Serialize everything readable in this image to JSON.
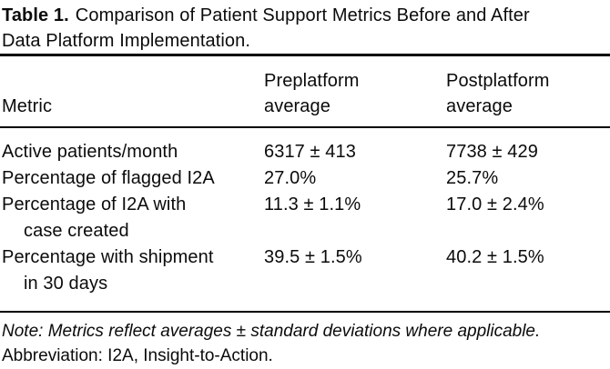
{
  "colors": {
    "background": "#ffffff",
    "text": "#0b0b0b",
    "rule": "#000000"
  },
  "caption": {
    "label": "Table 1.",
    "line1": "Comparison of Patient Support Metrics Before and After",
    "line2": "Data Platform Implementation."
  },
  "table": {
    "columns": {
      "metric": "Metric",
      "preplatform": "Preplatform average",
      "postplatform": "Postplatform average"
    },
    "rows": [
      {
        "metric_line1": "Active patients/month",
        "pre": "6317 ± 413",
        "post": "7738 ± 429"
      },
      {
        "metric_line1": "Percentage of flagged I2A",
        "pre": "27.0%",
        "post": "25.7%"
      },
      {
        "metric_line1": "Percentage of I2A with",
        "metric_line2": "case created",
        "pre": "11.3 ± 1.1%",
        "post": "17.0 ± 2.4%"
      },
      {
        "metric_line1": "Percentage with shipment",
        "metric_line2": "in 30 days",
        "pre": "39.5 ± 1.5%",
        "post": "40.2 ± 1.5%"
      }
    ]
  },
  "footnotes": {
    "note": "Note: Metrics reflect averages ± standard deviations where applicable.",
    "abbreviation": "Abbreviation: I2A, Insight-to-Action."
  }
}
